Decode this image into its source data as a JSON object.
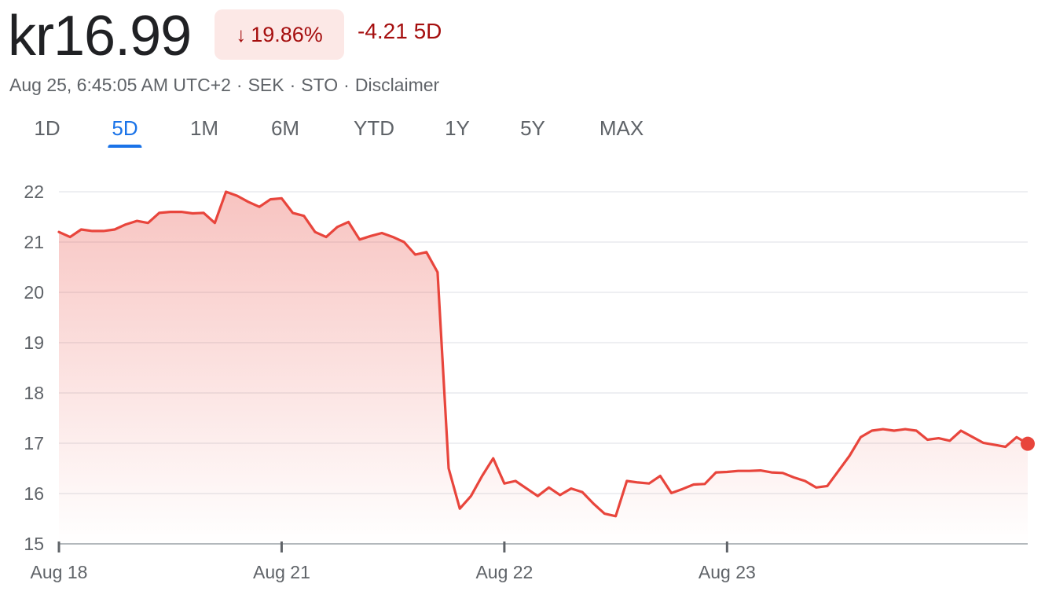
{
  "quote": {
    "price": "kr16.99",
    "change_percent": "19.86%",
    "change_abs": "-4.21 5D",
    "timestamp": "Aug 25, 6:45:05 AM UTC+2",
    "currency": "SEK",
    "exchange": "STO",
    "disclaimer": "Disclaimer",
    "direction_icon": "arrow-down-icon"
  },
  "tabs": [
    {
      "label": "1D",
      "active": false
    },
    {
      "label": "5D",
      "active": true
    },
    {
      "label": "1M",
      "active": false
    },
    {
      "label": "6M",
      "active": false
    },
    {
      "label": "YTD",
      "active": false
    },
    {
      "label": "1Y",
      "active": false
    },
    {
      "label": "5Y",
      "active": false
    },
    {
      "label": "MAX",
      "active": false
    }
  ],
  "colors": {
    "negative": "#a50e0e",
    "line": "#e8453c",
    "badge_bg": "#fce8e6",
    "active_tab": "#1a73e8"
  },
  "chart_data": {
    "type": "area",
    "ylim": [
      15,
      22
    ],
    "y_ticks": [
      15,
      16,
      17,
      18,
      19,
      20,
      21,
      22
    ],
    "x_ticks": [
      "Aug 18",
      "Aug 21",
      "Aug 22",
      "Aug 23"
    ],
    "grid": true,
    "series": [
      {
        "values": [
          21.2,
          21.1,
          21.25,
          21.22,
          21.22,
          21.25,
          21.35,
          21.42,
          21.38,
          21.58,
          21.6,
          21.6,
          21.57,
          21.58,
          21.38,
          22.0,
          21.92,
          21.8,
          21.7,
          21.85,
          21.87,
          21.58,
          21.52,
          21.2,
          21.1,
          21.3,
          21.4,
          21.05,
          21.12,
          21.18,
          21.1,
          21.0,
          20.75,
          20.8,
          20.4,
          16.5,
          15.7,
          15.95,
          16.35,
          16.7,
          16.2,
          16.25,
          16.1,
          15.95,
          16.12,
          15.97,
          16.1,
          16.03,
          15.8,
          15.6,
          15.55,
          16.25,
          16.22,
          16.2,
          16.35,
          16.01,
          16.09,
          16.18,
          16.19,
          16.42,
          16.43,
          16.45,
          16.45,
          16.46,
          16.42,
          16.41,
          16.32,
          16.25,
          16.12,
          16.15,
          16.45,
          16.75,
          17.12,
          17.25,
          17.28,
          17.25,
          17.28,
          17.25,
          17.07,
          17.1,
          17.05,
          17.25,
          17.13,
          17.01,
          16.97,
          16.93,
          17.12,
          16.99
        ],
        "color": "#e8453c"
      }
    ],
    "last_value": 16.99
  }
}
